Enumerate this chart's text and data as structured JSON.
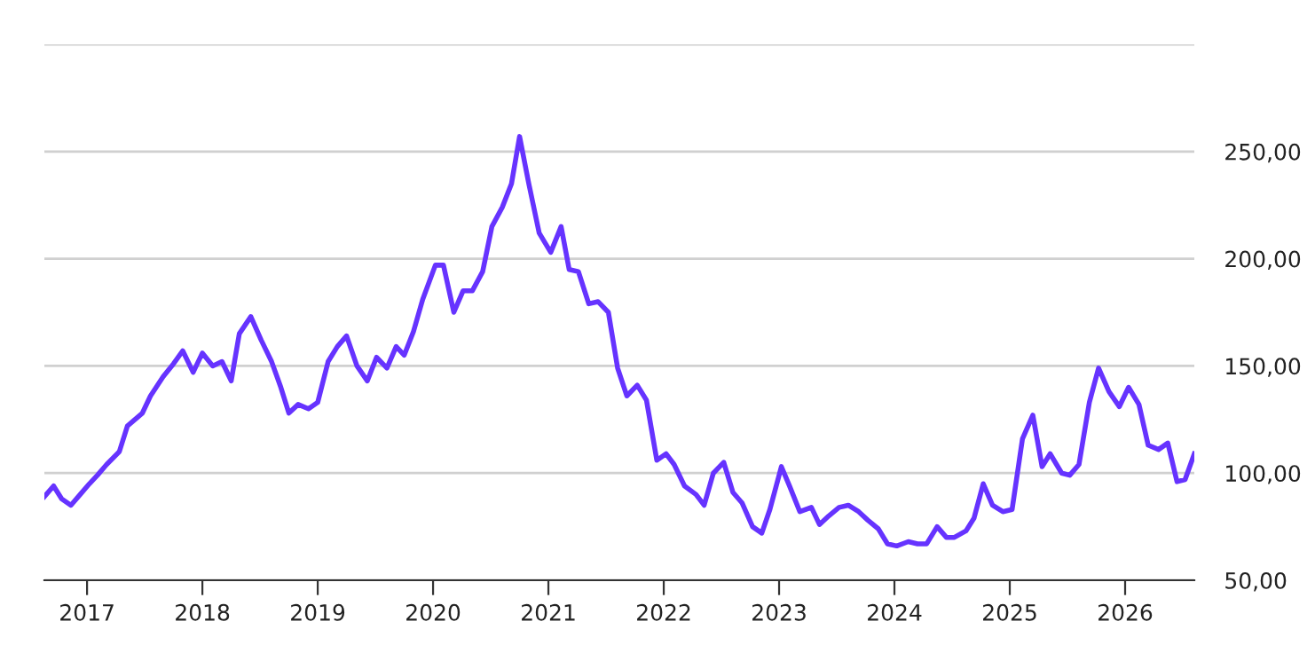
{
  "chart_data": {
    "type": "line",
    "x": [
      2016.63,
      2016.71,
      2016.78,
      2016.86,
      2016.94,
      2017.02,
      2017.09,
      2017.17,
      2017.28,
      2017.35,
      2017.48,
      2017.55,
      2017.66,
      2017.75,
      2017.83,
      2017.92,
      2018.0,
      2018.09,
      2018.17,
      2018.25,
      2018.32,
      2018.42,
      2018.51,
      2018.6,
      2018.68,
      2018.75,
      2018.83,
      2018.92,
      2019.0,
      2019.09,
      2019.17,
      2019.25,
      2019.34,
      2019.43,
      2019.51,
      2019.6,
      2019.68,
      2019.75,
      2019.83,
      2019.91,
      2020.02,
      2020.09,
      2020.18,
      2020.26,
      2020.34,
      2020.43,
      2020.51,
      2020.6,
      2020.68,
      2020.75,
      2020.83,
      2020.92,
      2021.02,
      2021.11,
      2021.18,
      2021.26,
      2021.35,
      2021.43,
      2021.52,
      2021.6,
      2021.68,
      2021.77,
      2021.85,
      2021.94,
      2022.02,
      2022.09,
      2022.18,
      2022.28,
      2022.35,
      2022.43,
      2022.52,
      2022.6,
      2022.68,
      2022.77,
      2022.85,
      2022.92,
      2023.02,
      2023.09,
      2023.18,
      2023.28,
      2023.35,
      2023.43,
      2023.52,
      2023.6,
      2023.69,
      2023.77,
      2023.86,
      2023.94,
      2024.02,
      2024.12,
      2024.2,
      2024.28,
      2024.37,
      2024.45,
      2024.52,
      2024.62,
      2024.69,
      2024.77,
      2024.85,
      2024.94,
      2025.02,
      2025.11,
      2025.2,
      2025.28,
      2025.35,
      2025.45,
      2025.52,
      2025.6,
      2025.69,
      2025.77,
      2025.86,
      2025.95,
      2026.03,
      2026.12,
      2026.2,
      2026.29,
      2026.37,
      2026.45,
      2026.52,
      2026.6
    ],
    "series": [
      {
        "color": "#6633ff",
        "values": [
          89,
          94,
          88,
          85,
          90,
          95,
          99,
          104,
          110,
          122,
          128,
          136,
          145,
          151,
          157,
          147,
          156,
          150,
          152,
          143,
          165,
          173,
          162,
          152,
          140,
          128,
          132,
          130,
          133,
          152,
          159,
          164,
          150,
          143,
          154,
          149,
          159,
          155,
          166,
          181,
          197,
          197,
          175,
          185,
          185,
          194,
          215,
          224,
          235,
          257,
          235,
          212,
          203,
          215,
          195,
          194,
          179,
          180,
          175,
          149,
          136,
          141,
          134,
          106,
          109,
          104,
          94,
          90,
          85,
          100,
          105,
          91,
          86,
          75,
          72,
          83,
          103,
          94,
          82,
          84,
          76,
          80,
          84,
          85,
          82,
          78,
          74,
          67,
          66,
          68,
          67,
          67,
          75,
          70,
          70,
          73,
          79,
          95,
          85,
          82,
          83,
          116,
          127,
          103,
          109,
          100,
          99,
          104,
          133,
          149,
          138,
          131,
          140,
          132,
          113,
          111,
          114,
          96,
          97,
          109
        ]
      }
    ],
    "xlim": [
      2016.63,
      2026.6
    ],
    "xticks": [
      2017,
      2018,
      2019,
      2020,
      2021,
      2022,
      2023,
      2024,
      2025,
      2026
    ],
    "ylim": [
      50,
      300
    ],
    "yticks": [
      {
        "value": 50,
        "label": "50,00"
      },
      {
        "value": 100,
        "label": "100,00"
      },
      {
        "value": 150,
        "label": "150,00"
      },
      {
        "value": 200,
        "label": "200,00"
      },
      {
        "value": 250,
        "label": "250,00"
      },
      {
        "value": 300,
        "label": null
      }
    ],
    "grid": "y",
    "legend": false,
    "marker": "none",
    "line_style": "solid"
  }
}
